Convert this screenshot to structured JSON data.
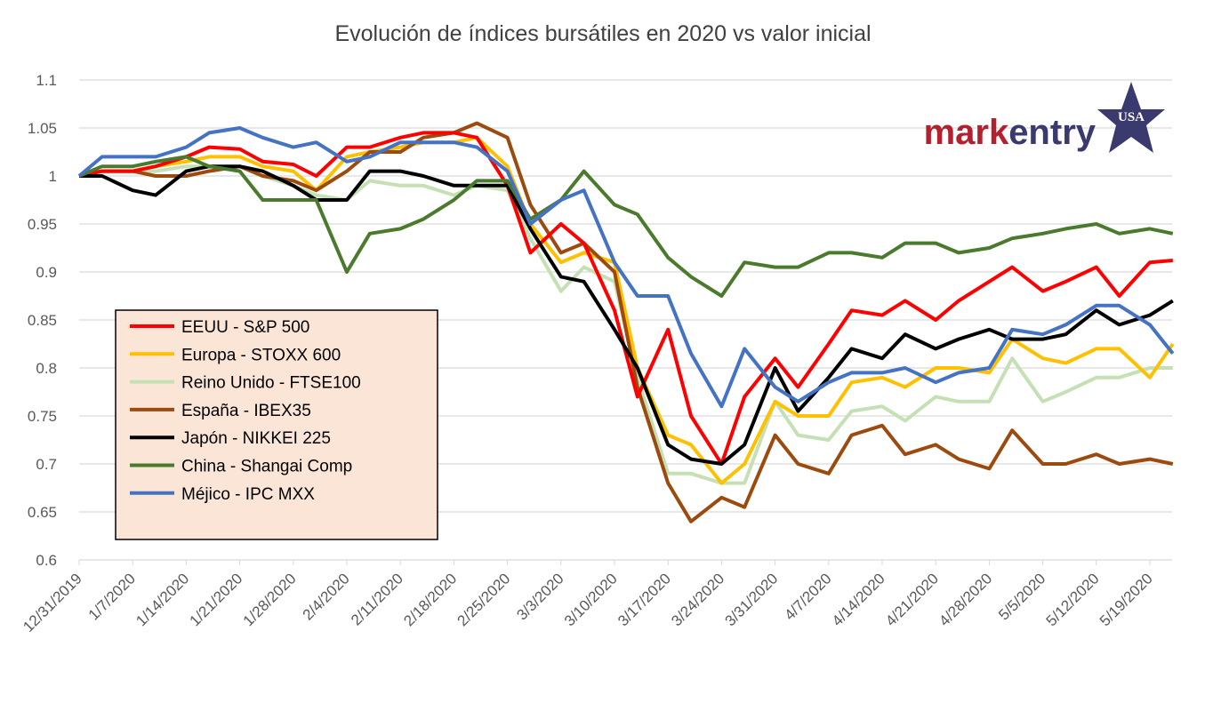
{
  "chart_data": {
    "type": "line",
    "title": "Evolución de índices bursátiles en 2020 vs valor inicial",
    "xlabel": "",
    "ylabel": "",
    "ylim": [
      0.6,
      1.1
    ],
    "yticks": [
      "0.6",
      "0.65",
      "0.7",
      "0.75",
      "0.8",
      "0.85",
      "0.9",
      "0.95",
      "1",
      "1.05",
      "1.1"
    ],
    "xtick_labels": [
      "12/31/2019",
      "1/7/2020",
      "1/14/2020",
      "1/21/2020",
      "1/28/2020",
      "2/4/2020",
      "2/11/2020",
      "2/18/2020",
      "2/25/2020",
      "3/3/2020",
      "3/10/2020",
      "3/17/2020",
      "3/24/2020",
      "3/31/2020",
      "4/7/2020",
      "4/14/2020",
      "4/21/2020",
      "4/28/2020",
      "5/5/2020",
      "5/12/2020",
      "5/19/2020"
    ],
    "grid": "horizontal",
    "legend_placement": "center-left",
    "x": [
      "2019-12-31",
      "2020-01-03",
      "2020-01-07",
      "2020-01-10",
      "2020-01-14",
      "2020-01-17",
      "2020-01-21",
      "2020-01-24",
      "2020-01-28",
      "2020-01-31",
      "2020-02-04",
      "2020-02-07",
      "2020-02-11",
      "2020-02-14",
      "2020-02-18",
      "2020-02-21",
      "2020-02-25",
      "2020-02-28",
      "2020-03-03",
      "2020-03-06",
      "2020-03-10",
      "2020-03-13",
      "2020-03-17",
      "2020-03-20",
      "2020-03-24",
      "2020-03-27",
      "2020-03-31",
      "2020-04-03",
      "2020-04-07",
      "2020-04-10",
      "2020-04-14",
      "2020-04-17",
      "2020-04-21",
      "2020-04-24",
      "2020-04-28",
      "2020-05-01",
      "2020-05-05",
      "2020-05-08",
      "2020-05-12",
      "2020-05-15",
      "2020-05-19",
      "2020-05-22"
    ],
    "series": [
      {
        "name": "EEUU - S&P 500",
        "color": "#FF0000",
        "values": [
          1,
          1.005,
          1.005,
          1.01,
          1.02,
          1.03,
          1.028,
          1.015,
          1.012,
          1.0,
          1.03,
          1.03,
          1.04,
          1.045,
          1.045,
          1.04,
          0.99,
          0.92,
          0.95,
          0.93,
          0.86,
          0.77,
          0.84,
          0.75,
          0.7,
          0.77,
          0.81,
          0.78,
          0.825,
          0.86,
          0.855,
          0.87,
          0.85,
          0.87,
          0.89,
          0.905,
          0.88,
          0.89,
          0.905,
          0.875,
          0.91,
          0.912
        ]
      },
      {
        "name": "Europa - STOXX 600",
        "color": "#FFC000",
        "values": [
          1,
          1.005,
          1.005,
          1.01,
          1.015,
          1.02,
          1.02,
          1.01,
          1.005,
          0.985,
          1.02,
          1.025,
          1.03,
          1.035,
          1.035,
          1.04,
          1.01,
          0.95,
          0.91,
          0.92,
          0.91,
          0.8,
          0.73,
          0.72,
          0.68,
          0.7,
          0.765,
          0.75,
          0.75,
          0.785,
          0.79,
          0.78,
          0.8,
          0.8,
          0.795,
          0.83,
          0.81,
          0.805,
          0.82,
          0.82,
          0.79,
          0.825
        ]
      },
      {
        "name": "Reino Unido - FTSE100",
        "color": "#C5E0B4",
        "values": [
          1,
          1.005,
          1.005,
          1.005,
          1.01,
          1.01,
          1.01,
          1.0,
          0.99,
          0.98,
          0.975,
          0.995,
          0.99,
          0.99,
          0.98,
          0.99,
          0.985,
          0.935,
          0.88,
          0.905,
          0.89,
          0.79,
          0.69,
          0.69,
          0.68,
          0.68,
          0.765,
          0.73,
          0.725,
          0.755,
          0.76,
          0.745,
          0.77,
          0.765,
          0.765,
          0.81,
          0.765,
          0.775,
          0.79,
          0.79,
          0.8,
          0.8
        ]
      },
      {
        "name": "España - IBEX35",
        "color": "#9C4A0E",
        "values": [
          1,
          1.005,
          1.005,
          1.0,
          1.0,
          1.005,
          1.01,
          1.0,
          0.995,
          0.985,
          1.005,
          1.025,
          1.025,
          1.04,
          1.045,
          1.055,
          1.04,
          0.97,
          0.92,
          0.93,
          0.9,
          0.78,
          0.68,
          0.64,
          0.665,
          0.655,
          0.73,
          0.7,
          0.69,
          0.73,
          0.74,
          0.71,
          0.72,
          0.705,
          0.695,
          0.735,
          0.7,
          0.7,
          0.71,
          0.7,
          0.705,
          0.7
        ]
      },
      {
        "name": "Japón - NIKKEI 225",
        "color": "#000000",
        "values": [
          1,
          1.0,
          0.985,
          0.98,
          1.005,
          1.01,
          1.01,
          1.005,
          0.99,
          0.975,
          0.975,
          1.005,
          1.005,
          1.0,
          0.99,
          0.99,
          0.99,
          0.945,
          0.895,
          0.89,
          0.84,
          0.8,
          0.72,
          0.705,
          0.7,
          0.72,
          0.8,
          0.755,
          0.79,
          0.82,
          0.81,
          0.835,
          0.82,
          0.83,
          0.84,
          0.83,
          0.83,
          0.835,
          0.86,
          0.845,
          0.855,
          0.87
        ]
      },
      {
        "name": "China - Shangai Comp",
        "color": "#4A7A2C",
        "values": [
          1,
          1.01,
          1.01,
          1.015,
          1.02,
          1.01,
          1.005,
          0.975,
          0.975,
          0.975,
          0.9,
          0.94,
          0.945,
          0.955,
          0.975,
          0.995,
          0.995,
          0.955,
          0.975,
          1.005,
          0.97,
          0.96,
          0.915,
          0.895,
          0.875,
          0.91,
          0.905,
          0.905,
          0.92,
          0.92,
          0.915,
          0.93,
          0.93,
          0.92,
          0.925,
          0.935,
          0.94,
          0.945,
          0.95,
          0.94,
          0.945,
          0.94
        ]
      },
      {
        "name": "Méjico - IPC MXX",
        "color": "#4472C4",
        "values": [
          1,
          1.02,
          1.02,
          1.02,
          1.03,
          1.045,
          1.05,
          1.04,
          1.03,
          1.035,
          1.015,
          1.02,
          1.035,
          1.035,
          1.035,
          1.03,
          1.005,
          0.95,
          0.975,
          0.985,
          0.91,
          0.875,
          0.875,
          0.815,
          0.76,
          0.82,
          0.78,
          0.765,
          0.785,
          0.795,
          0.795,
          0.8,
          0.785,
          0.795,
          0.8,
          0.84,
          0.835,
          0.845,
          0.865,
          0.865,
          0.845,
          0.815
        ]
      }
    ]
  },
  "logo": {
    "text_mark": "mark",
    "text_entry": "entry",
    "badge": "USA",
    "mark_color": "#B3202E",
    "entry_color": "#3A3A6E",
    "star_color": "#3A3A6E"
  },
  "legend_bg": "#FBE5D6"
}
